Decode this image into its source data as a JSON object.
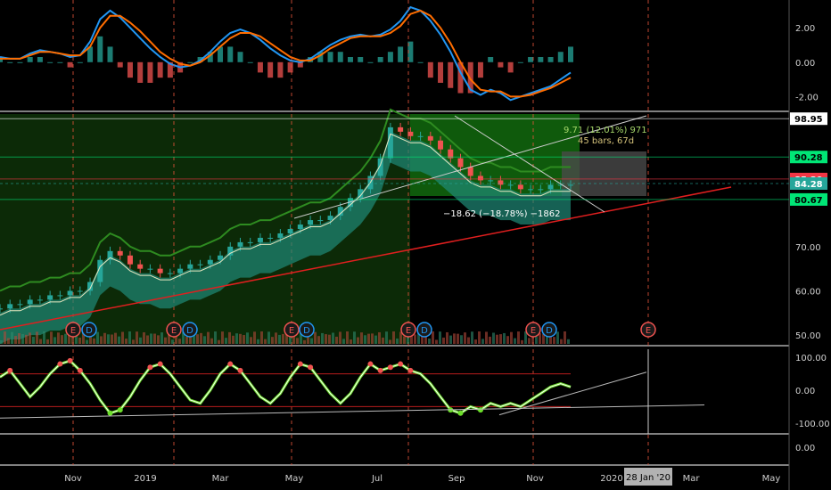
{
  "chart_data": [
    {
      "type": "line",
      "panel": "macd",
      "y_ticks": [
        "2.00",
        "0.00",
        "-2.00"
      ],
      "ylim": [
        -2.6,
        3.2
      ],
      "series": [
        {
          "color": "#2196f3",
          "values": [
            0.3,
            0.2,
            0.2,
            0.5,
            0.7,
            0.6,
            0.5,
            0.3,
            0.4,
            1.2,
            2.5,
            3.0,
            2.6,
            2.0,
            1.4,
            0.8,
            0.3,
            -0.1,
            -0.3,
            -0.2,
            0.1,
            0.6,
            1.2,
            1.7,
            1.9,
            1.7,
            1.3,
            0.8,
            0.4,
            0.1,
            0.0,
            0.2,
            0.6,
            1.0,
            1.3,
            1.5,
            1.6,
            1.5,
            1.6,
            1.9,
            2.4,
            3.2,
            3.0,
            2.4,
            1.6,
            0.6,
            -0.6,
            -1.6,
            -1.9,
            -1.6,
            -1.8,
            -2.2,
            -2.0,
            -1.8,
            -1.6,
            -1.4,
            -1.0,
            -0.6
          ]
        },
        {
          "color": "#ff6d00",
          "values": [
            0.2,
            0.2,
            0.2,
            0.4,
            0.6,
            0.6,
            0.5,
            0.4,
            0.4,
            0.9,
            2.0,
            2.7,
            2.7,
            2.3,
            1.8,
            1.2,
            0.6,
            0.2,
            -0.1,
            -0.2,
            0.0,
            0.4,
            0.9,
            1.4,
            1.7,
            1.7,
            1.5,
            1.1,
            0.7,
            0.3,
            0.1,
            0.1,
            0.4,
            0.8,
            1.1,
            1.4,
            1.5,
            1.5,
            1.5,
            1.7,
            2.1,
            2.8,
            3.0,
            2.7,
            2.0,
            1.1,
            0.0,
            -1.0,
            -1.6,
            -1.7,
            -1.7,
            -2.0,
            -2.0,
            -1.9,
            -1.7,
            -1.5,
            -1.2,
            -0.9
          ]
        }
      ]
    },
    {
      "type": "candlestick",
      "panel": "price",
      "y_ticks": [
        "70.00",
        "60.00",
        "50.00"
      ],
      "ylim": [
        48,
        100
      ],
      "close": [
        56,
        57,
        57,
        58,
        58,
        59,
        59,
        60,
        60,
        62,
        67,
        69,
        68,
        66,
        65,
        65,
        64,
        64,
        65,
        66,
        66,
        67,
        68,
        70,
        71,
        71,
        72,
        72,
        73,
        74,
        75,
        76,
        76,
        77,
        79,
        81,
        83,
        86,
        90,
        97,
        96,
        95,
        95,
        94,
        92,
        90,
        88,
        86,
        85,
        85,
        84,
        84,
        83,
        83,
        83,
        84,
        84,
        84
      ],
      "price_tags": [
        {
          "label": "98.95",
          "value": 98.95,
          "bg": "#ffffff",
          "fg": "#000000"
        },
        {
          "label": "90.28",
          "value": 90.28,
          "bg": "#00e676",
          "fg": "#000000"
        },
        {
          "label": "85.30",
          "value": 85.3,
          "bg": "#f23645",
          "fg": "#ffffff"
        },
        {
          "label": "84.28",
          "value": 84.28,
          "bg": "#26a69a",
          "fg": "#ffffff"
        },
        {
          "label": "80.67",
          "value": 80.67,
          "bg": "#00e676",
          "fg": "#000000"
        }
      ],
      "annotations": {
        "range_up_line1": "9.71 (12.01%) 971",
        "range_up_line2": "45 bars, 67d",
        "range_down": "−18.62 (−18.78%) −1862"
      },
      "event_markers": [
        "E",
        "D",
        "E",
        "D",
        "E",
        "D",
        "E",
        "D",
        "E",
        "D",
        "E"
      ]
    },
    {
      "type": "line",
      "panel": "oscillator",
      "y_ticks": [
        "100.00",
        "0.00",
        "-100.00"
      ],
      "ylim": [
        -125,
        125
      ],
      "series": [
        {
          "color": "#ffffff",
          "values": [
            40,
            60,
            20,
            -20,
            10,
            50,
            80,
            90,
            60,
            20,
            -30,
            -70,
            -60,
            -20,
            30,
            70,
            80,
            50,
            10,
            -30,
            -40,
            0,
            50,
            80,
            60,
            20,
            -20,
            -40,
            -10,
            40,
            80,
            70,
            30,
            -10,
            -40,
            -10,
            40,
            80,
            60,
            70,
            80,
            60,
            50,
            20,
            -20,
            -60,
            -70,
            -50,
            -60,
            -40,
            -50,
            -40,
            -50,
            -30,
            -10,
            10,
            20,
            10
          ]
        }
      ]
    },
    {
      "type": "line",
      "panel": "lower",
      "y_ticks": [
        "0.00"
      ]
    }
  ],
  "x_axis": {
    "ticks": [
      "Nov",
      "2019",
      "Mar",
      "May",
      "Jul",
      "Sep",
      "Nov",
      "2020",
      "Mar",
      "May"
    ],
    "crosshair_label": "28 Jan '20"
  }
}
